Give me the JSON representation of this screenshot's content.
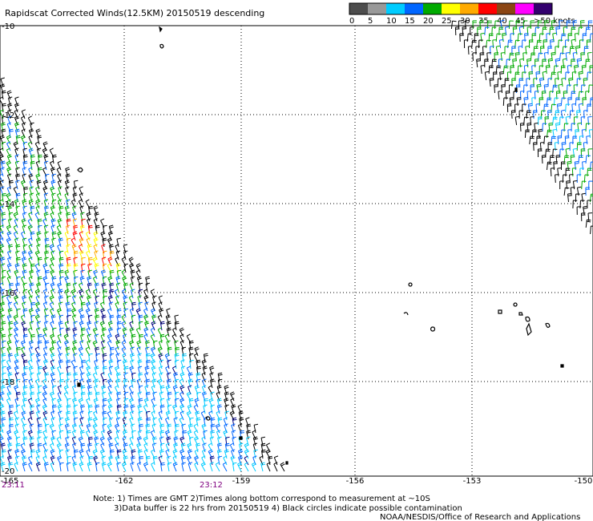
{
  "title": "Rapidscat Corrected Winds(12.5KM) 20150519 descending",
  "legend": {
    "labels": [
      "0",
      "5",
      "10",
      "15",
      "20",
      "25",
      "30",
      "35",
      "40",
      "45",
      ">50 knots"
    ],
    "colors": [
      "#4d4d4d",
      "#999999",
      "#00ccff",
      "#0066ff",
      "#00aa00",
      "#ffff00",
      "#ffaa00",
      "#ff0000",
      "#8b4513",
      "#ff00ff",
      "#33006e"
    ]
  },
  "axes": {
    "lon_labels": [
      "-165",
      "-162",
      "-159",
      "-156",
      "-153",
      "-150"
    ],
    "lat_labels": [
      "-10",
      "-12",
      "-14",
      "-16",
      "-18",
      "-20"
    ]
  },
  "times": {
    "left": "23:11",
    "middle": "23:12"
  },
  "notes": {
    "line1": "Note: 1) Times are GMT 2)Times along bottom correspond to measurement at ~10S",
    "line2": "3)Data buffer is 22 hrs from 20150519 4) Black circles indicate possible contamination",
    "credit": "NOAA/NESDIS/Office of Research and Applications"
  }
}
